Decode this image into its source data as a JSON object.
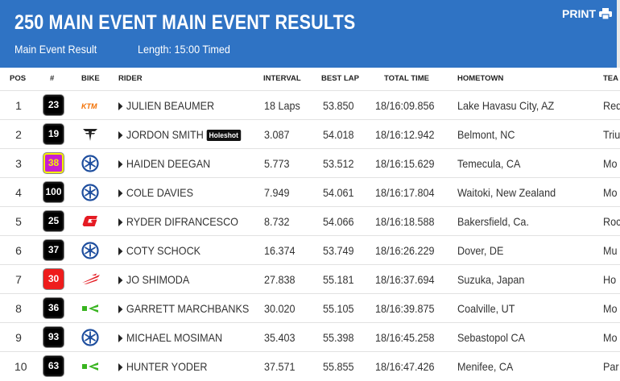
{
  "header": {
    "title": "250 MAIN EVENT MAIN EVENT RESULTS",
    "result_label": "Main Event Result",
    "length_label": "Length: 15:00 Timed",
    "print_label": "PRINT"
  },
  "columns": {
    "pos": "POS",
    "num": "#",
    "bike": "BIKE",
    "rider": "RIDER",
    "interval": "INTERVAL",
    "best_lap": "BEST LAP",
    "total_time": "TOTAL TIME",
    "hometown": "HOMETOWN",
    "team": "TEA"
  },
  "rows": [
    {
      "pos": "1",
      "num": "23",
      "bike_icon": "ktm-logo-icon",
      "rider": "JULIEN BEAUMER",
      "badge": "",
      "interval": "18 Laps",
      "best_lap": "53.850",
      "total_time": "18/16:09.856",
      "hometown": "Lake Havasu City, AZ",
      "team": "Red",
      "plate_bg": "#000000",
      "plate_fg": "#ffffff"
    },
    {
      "pos": "2",
      "num": "19",
      "bike_icon": "triumph-logo-icon",
      "rider": "JORDON SMITH",
      "badge": "Holeshot",
      "interval": "3.087",
      "best_lap": "54.018",
      "total_time": "18/16:12.942",
      "hometown": "Belmont, NC",
      "team": "Triu",
      "plate_bg": "#000000",
      "plate_fg": "#ffffff"
    },
    {
      "pos": "3",
      "num": "38",
      "bike_icon": "yamaha-logo-icon",
      "rider": "HAIDEN DEEGAN",
      "badge": "",
      "interval": "5.773",
      "best_lap": "53.512",
      "total_time": "18/16:15.629",
      "hometown": "Temecula, CA",
      "team": "Mo",
      "plate_bg": "#c81ed0",
      "plate_fg": "#f5f000"
    },
    {
      "pos": "4",
      "num": "100",
      "bike_icon": "yamaha-logo-icon",
      "rider": "COLE DAVIES",
      "badge": "",
      "interval": "7.949",
      "best_lap": "54.061",
      "total_time": "18/16:17.804",
      "hometown": "Waitoki, New Zealand",
      "team": "Mo",
      "plate_bg": "#000000",
      "plate_fg": "#ffffff"
    },
    {
      "pos": "5",
      "num": "25",
      "bike_icon": "gasgas-logo-icon",
      "rider": "RYDER DIFRANCESCO",
      "badge": "",
      "interval": "8.732",
      "best_lap": "54.066",
      "total_time": "18/16:18.588",
      "hometown": "Bakersfield, Ca.",
      "team": "Roc",
      "plate_bg": "#000000",
      "plate_fg": "#ffffff"
    },
    {
      "pos": "6",
      "num": "37",
      "bike_icon": "yamaha-logo-icon",
      "rider": "COTY SCHOCK",
      "badge": "",
      "interval": "16.374",
      "best_lap": "53.749",
      "total_time": "18/16:26.229",
      "hometown": "Dover, DE",
      "team": "Mu",
      "plate_bg": "#000000",
      "plate_fg": "#ffffff"
    },
    {
      "pos": "7",
      "num": "30",
      "bike_icon": "honda-logo-icon",
      "rider": "JO SHIMODA",
      "badge": "",
      "interval": "27.838",
      "best_lap": "55.181",
      "total_time": "18/16:37.694",
      "hometown": "Suzuka, Japan",
      "team": "Ho",
      "plate_bg": "#ee1c1c",
      "plate_fg": "#ffffff"
    },
    {
      "pos": "8",
      "num": "36",
      "bike_icon": "kawasaki-logo-icon",
      "rider": "GARRETT MARCHBANKS",
      "badge": "",
      "interval": "30.020",
      "best_lap": "55.105",
      "total_time": "18/16:39.875",
      "hometown": "Coalville, UT",
      "team": "Mo",
      "plate_bg": "#000000",
      "plate_fg": "#ffffff"
    },
    {
      "pos": "9",
      "num": "93",
      "bike_icon": "yamaha-logo-icon",
      "rider": "MICHAEL MOSIMAN",
      "badge": "",
      "interval": "35.403",
      "best_lap": "55.398",
      "total_time": "18/16:45.258",
      "hometown": "Sebastopol CA",
      "team": "Mo",
      "plate_bg": "#000000",
      "plate_fg": "#ffffff"
    },
    {
      "pos": "10",
      "num": "63",
      "bike_icon": "kawasaki-logo-icon",
      "rider": "HUNTER YODER",
      "badge": "",
      "interval": "37.571",
      "best_lap": "55.855",
      "total_time": "18/16:47.426",
      "hometown": "Menifee, CA",
      "team": "Par",
      "plate_bg": "#000000",
      "plate_fg": "#ffffff"
    }
  ],
  "colors": {
    "header_bg": "#2f73c4",
    "header_text": "#ffffff"
  }
}
